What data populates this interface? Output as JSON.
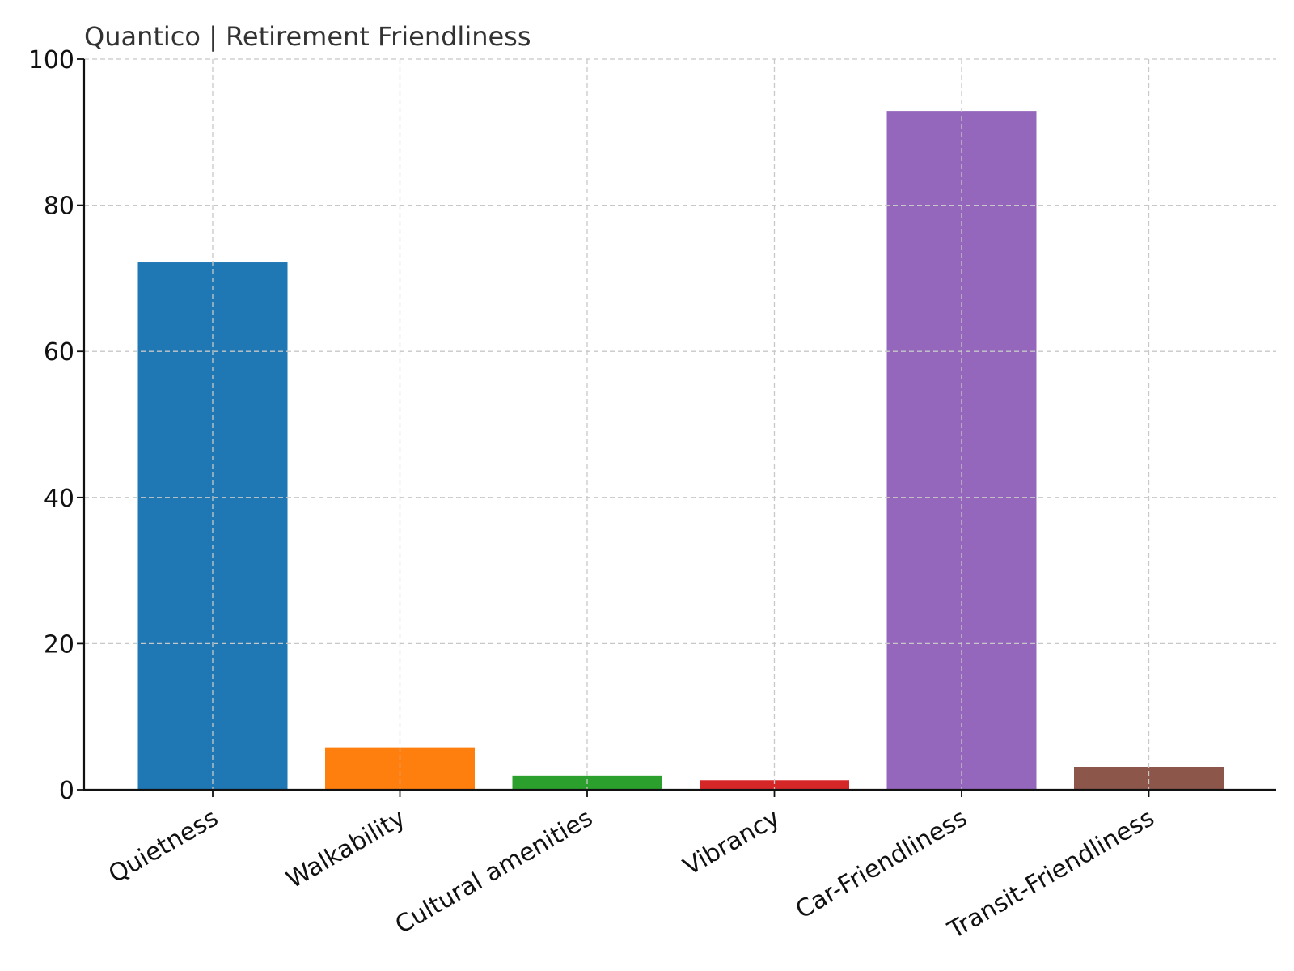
{
  "chart_data": {
    "type": "bar",
    "title": "Quantico | Retirement Friendliness",
    "xlabel": "",
    "ylabel": "",
    "categories": [
      "Quietness",
      "Walkability",
      "Cultural amenities",
      "Vibrancy",
      "Car-Friendliness",
      "Transit-Friendliness"
    ],
    "values": [
      72.2,
      5.8,
      1.9,
      1.3,
      92.9,
      3.1
    ],
    "colors": [
      "#1f77b4",
      "#ff7f0e",
      "#2ca02c",
      "#d62728",
      "#9467bd",
      "#8c564b"
    ],
    "ylim": [
      0,
      100
    ],
    "yticks": [
      "0",
      "20",
      "40",
      "60",
      "80",
      "100"
    ],
    "grid": true,
    "legend": "none"
  }
}
